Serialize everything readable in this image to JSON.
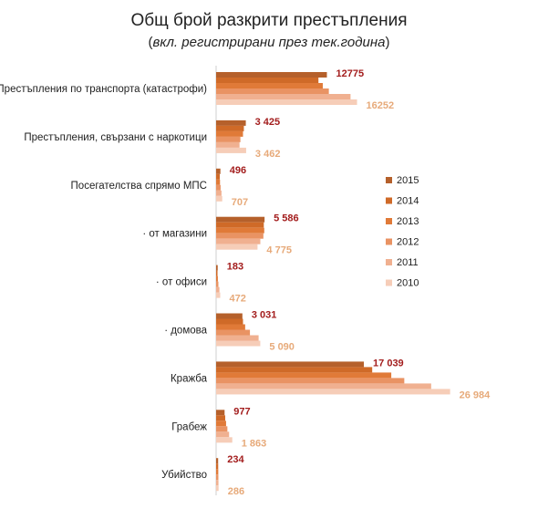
{
  "chart_data": {
    "type": "bar",
    "orientation": "horizontal",
    "title": "Общ брой разкрити престъпления",
    "subtitle_inner": "вкл. регистрирани през тек.година",
    "categories": [
      "Престъпления по транспорта (катастрофи)",
      "Престъпления, свързани с наркотици",
      "Посегателства спрямо МПС",
      "· от магазини",
      "· от офиси",
      "· домова",
      "Кражба",
      "Грабеж",
      "Убийство"
    ],
    "series": [
      {
        "name": "2015",
        "color": "#b5602b",
        "values": [
          12775,
          3425,
          496,
          5586,
          183,
          3031,
          17039,
          977,
          234
        ]
      },
      {
        "name": "2014",
        "color": "#cf6a28",
        "values": [
          11800,
          3200,
          420,
          5500,
          160,
          3100,
          18000,
          1050,
          240
        ]
      },
      {
        "name": "2013",
        "color": "#e07a38",
        "values": [
          12300,
          3100,
          450,
          5550,
          200,
          3350,
          20200,
          1150,
          250
        ]
      },
      {
        "name": "2012",
        "color": "#e99363",
        "values": [
          13000,
          2800,
          520,
          5450,
          260,
          3900,
          21700,
          1300,
          260
        ]
      },
      {
        "name": "2011",
        "color": "#f0b090",
        "values": [
          15500,
          2700,
          620,
          5100,
          380,
          4900,
          24800,
          1500,
          270
        ]
      },
      {
        "name": "2010",
        "color": "#f6cdb8",
        "values": [
          16252,
          3462,
          707,
          4775,
          472,
          5090,
          26984,
          1863,
          286
        ]
      }
    ],
    "data_labels_top": [
      "12775",
      "3 425",
      "496",
      "5 586",
      "183",
      "3 031",
      "17 039",
      "977",
      "234"
    ],
    "data_labels_bottom": [
      "16252",
      "3 462",
      "707",
      "4 775",
      "472",
      "5 090",
      "26 984",
      "1 863",
      "286"
    ],
    "legend_position": "right",
    "grid": false
  }
}
